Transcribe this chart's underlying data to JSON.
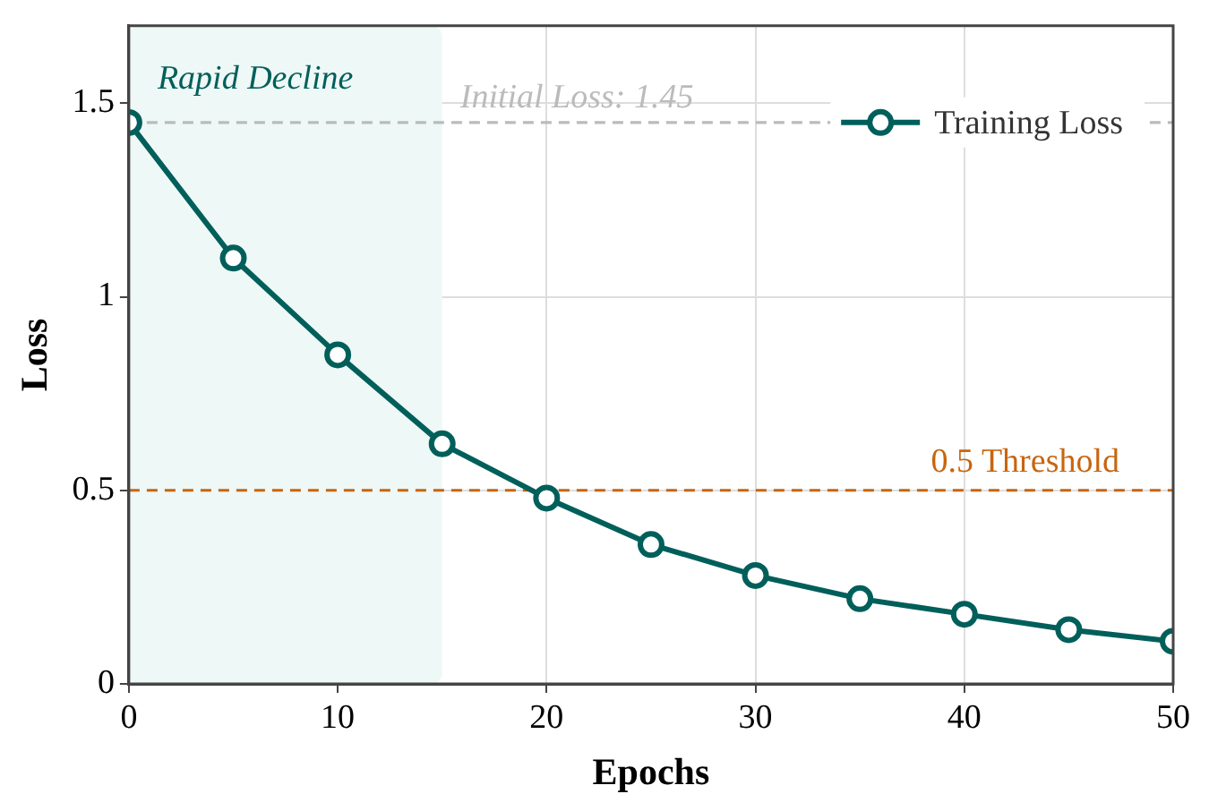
{
  "chart_data": {
    "type": "line",
    "xlabel": "Epochs",
    "ylabel": "Loss",
    "x": [
      0,
      5,
      10,
      15,
      20,
      25,
      30,
      35,
      40,
      45,
      50
    ],
    "series": [
      {
        "name": "Training Loss",
        "color": "#005f5a",
        "values": [
          1.45,
          1.1,
          0.85,
          0.62,
          0.48,
          0.36,
          0.28,
          0.22,
          0.18,
          0.14,
          0.11
        ]
      }
    ],
    "xlim": [
      0,
      50
    ],
    "xticks": [
      0,
      10,
      20,
      30,
      40,
      50
    ],
    "ylim": [
      0,
      1.7
    ],
    "yticks": [
      0,
      0.5,
      1,
      1.5
    ],
    "bands": [
      {
        "axis": "x",
        "from": 0,
        "to": 15,
        "label": "Rapid Decline",
        "color": "#eef8f6"
      }
    ],
    "ref_lines": [
      {
        "axis": "y",
        "value": 1.45,
        "label": "Initial Loss: 1.45",
        "color": "#bbbbbb",
        "line_style": "dashed"
      },
      {
        "axis": "y",
        "value": 0.5,
        "label": "0.5 Threshold",
        "color": "#c8650f",
        "line_style": "dashed"
      }
    ],
    "grid": true,
    "legend": "top right",
    "marker": "circle",
    "line_style": "solid"
  }
}
